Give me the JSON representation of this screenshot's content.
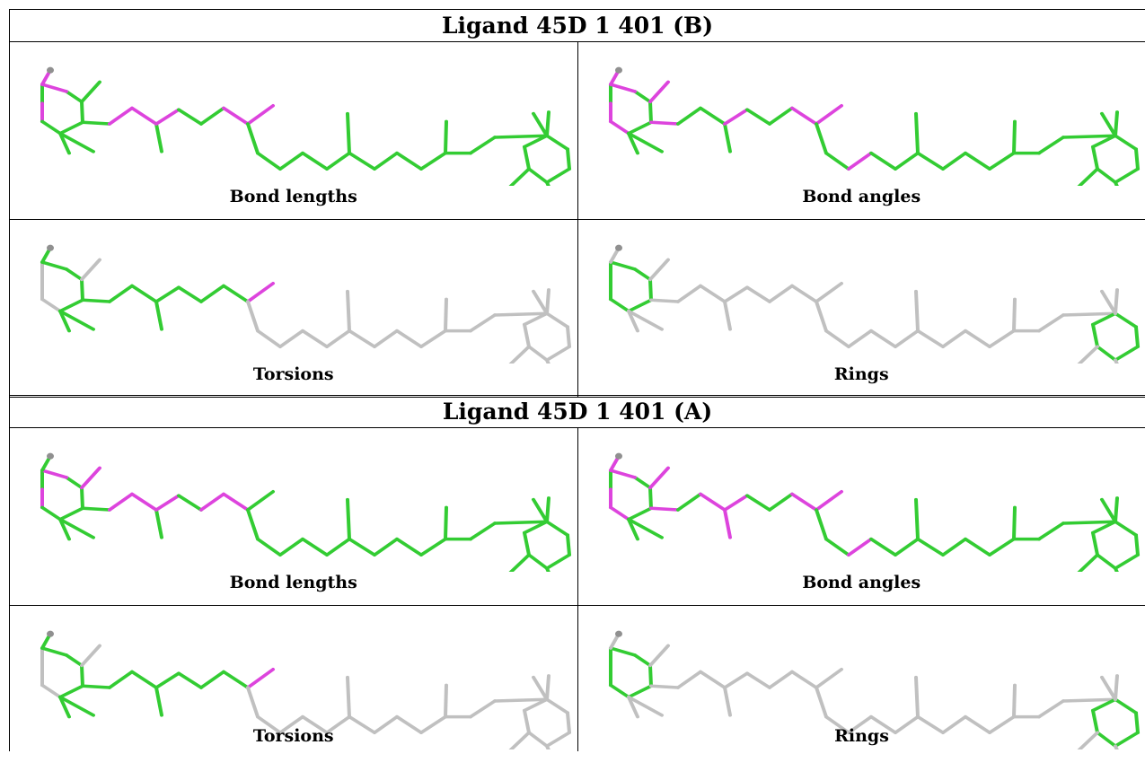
{
  "colors": {
    "ok": "#33cc33",
    "outlier": "#dd44dd",
    "none": "#c0c0c0",
    "atom": "#909090"
  },
  "tables": [
    {
      "id": "table-b",
      "title": "Ligand 45D 1 401 (B)",
      "panels": [
        {
          "label": "Bond lengths",
          "default": "ok",
          "outlier": [
            1,
            6,
            7,
            12,
            13,
            15,
            18,
            19
          ]
        },
        {
          "label": "Bond angles",
          "default": "ok",
          "outlier": [
            1,
            2,
            6,
            7,
            8,
            11,
            15,
            18,
            19,
            22
          ]
        },
        {
          "label": "Torsions",
          "default": "none",
          "ok": [
            3,
            4,
            5,
            6,
            7,
            9,
            10,
            11,
            12,
            13,
            14,
            15,
            16,
            17,
            18
          ],
          "outlier": [
            19
          ]
        },
        {
          "label": "Rings",
          "default": "none",
          "ring": true
        }
      ]
    },
    {
      "id": "table-a",
      "title": "Ligand 45D 1 401 (A)",
      "panels": [
        {
          "label": "Bond lengths",
          "default": "ok",
          "outlier": [
            1,
            6,
            8,
            12,
            13,
            15,
            17,
            18
          ]
        },
        {
          "label": "Bond angles",
          "default": "ok",
          "outlier": [
            1,
            2,
            6,
            7,
            8,
            11,
            13,
            14,
            15,
            18,
            19,
            22
          ]
        },
        {
          "label": "Torsions",
          "default": "none",
          "ok": [
            3,
            4,
            5,
            6,
            7,
            9,
            10,
            11,
            12,
            13,
            14,
            15,
            16,
            17,
            18
          ],
          "outlier": [
            19
          ]
        },
        {
          "label": "Rings",
          "default": "none",
          "ring": true
        }
      ]
    }
  ]
}
